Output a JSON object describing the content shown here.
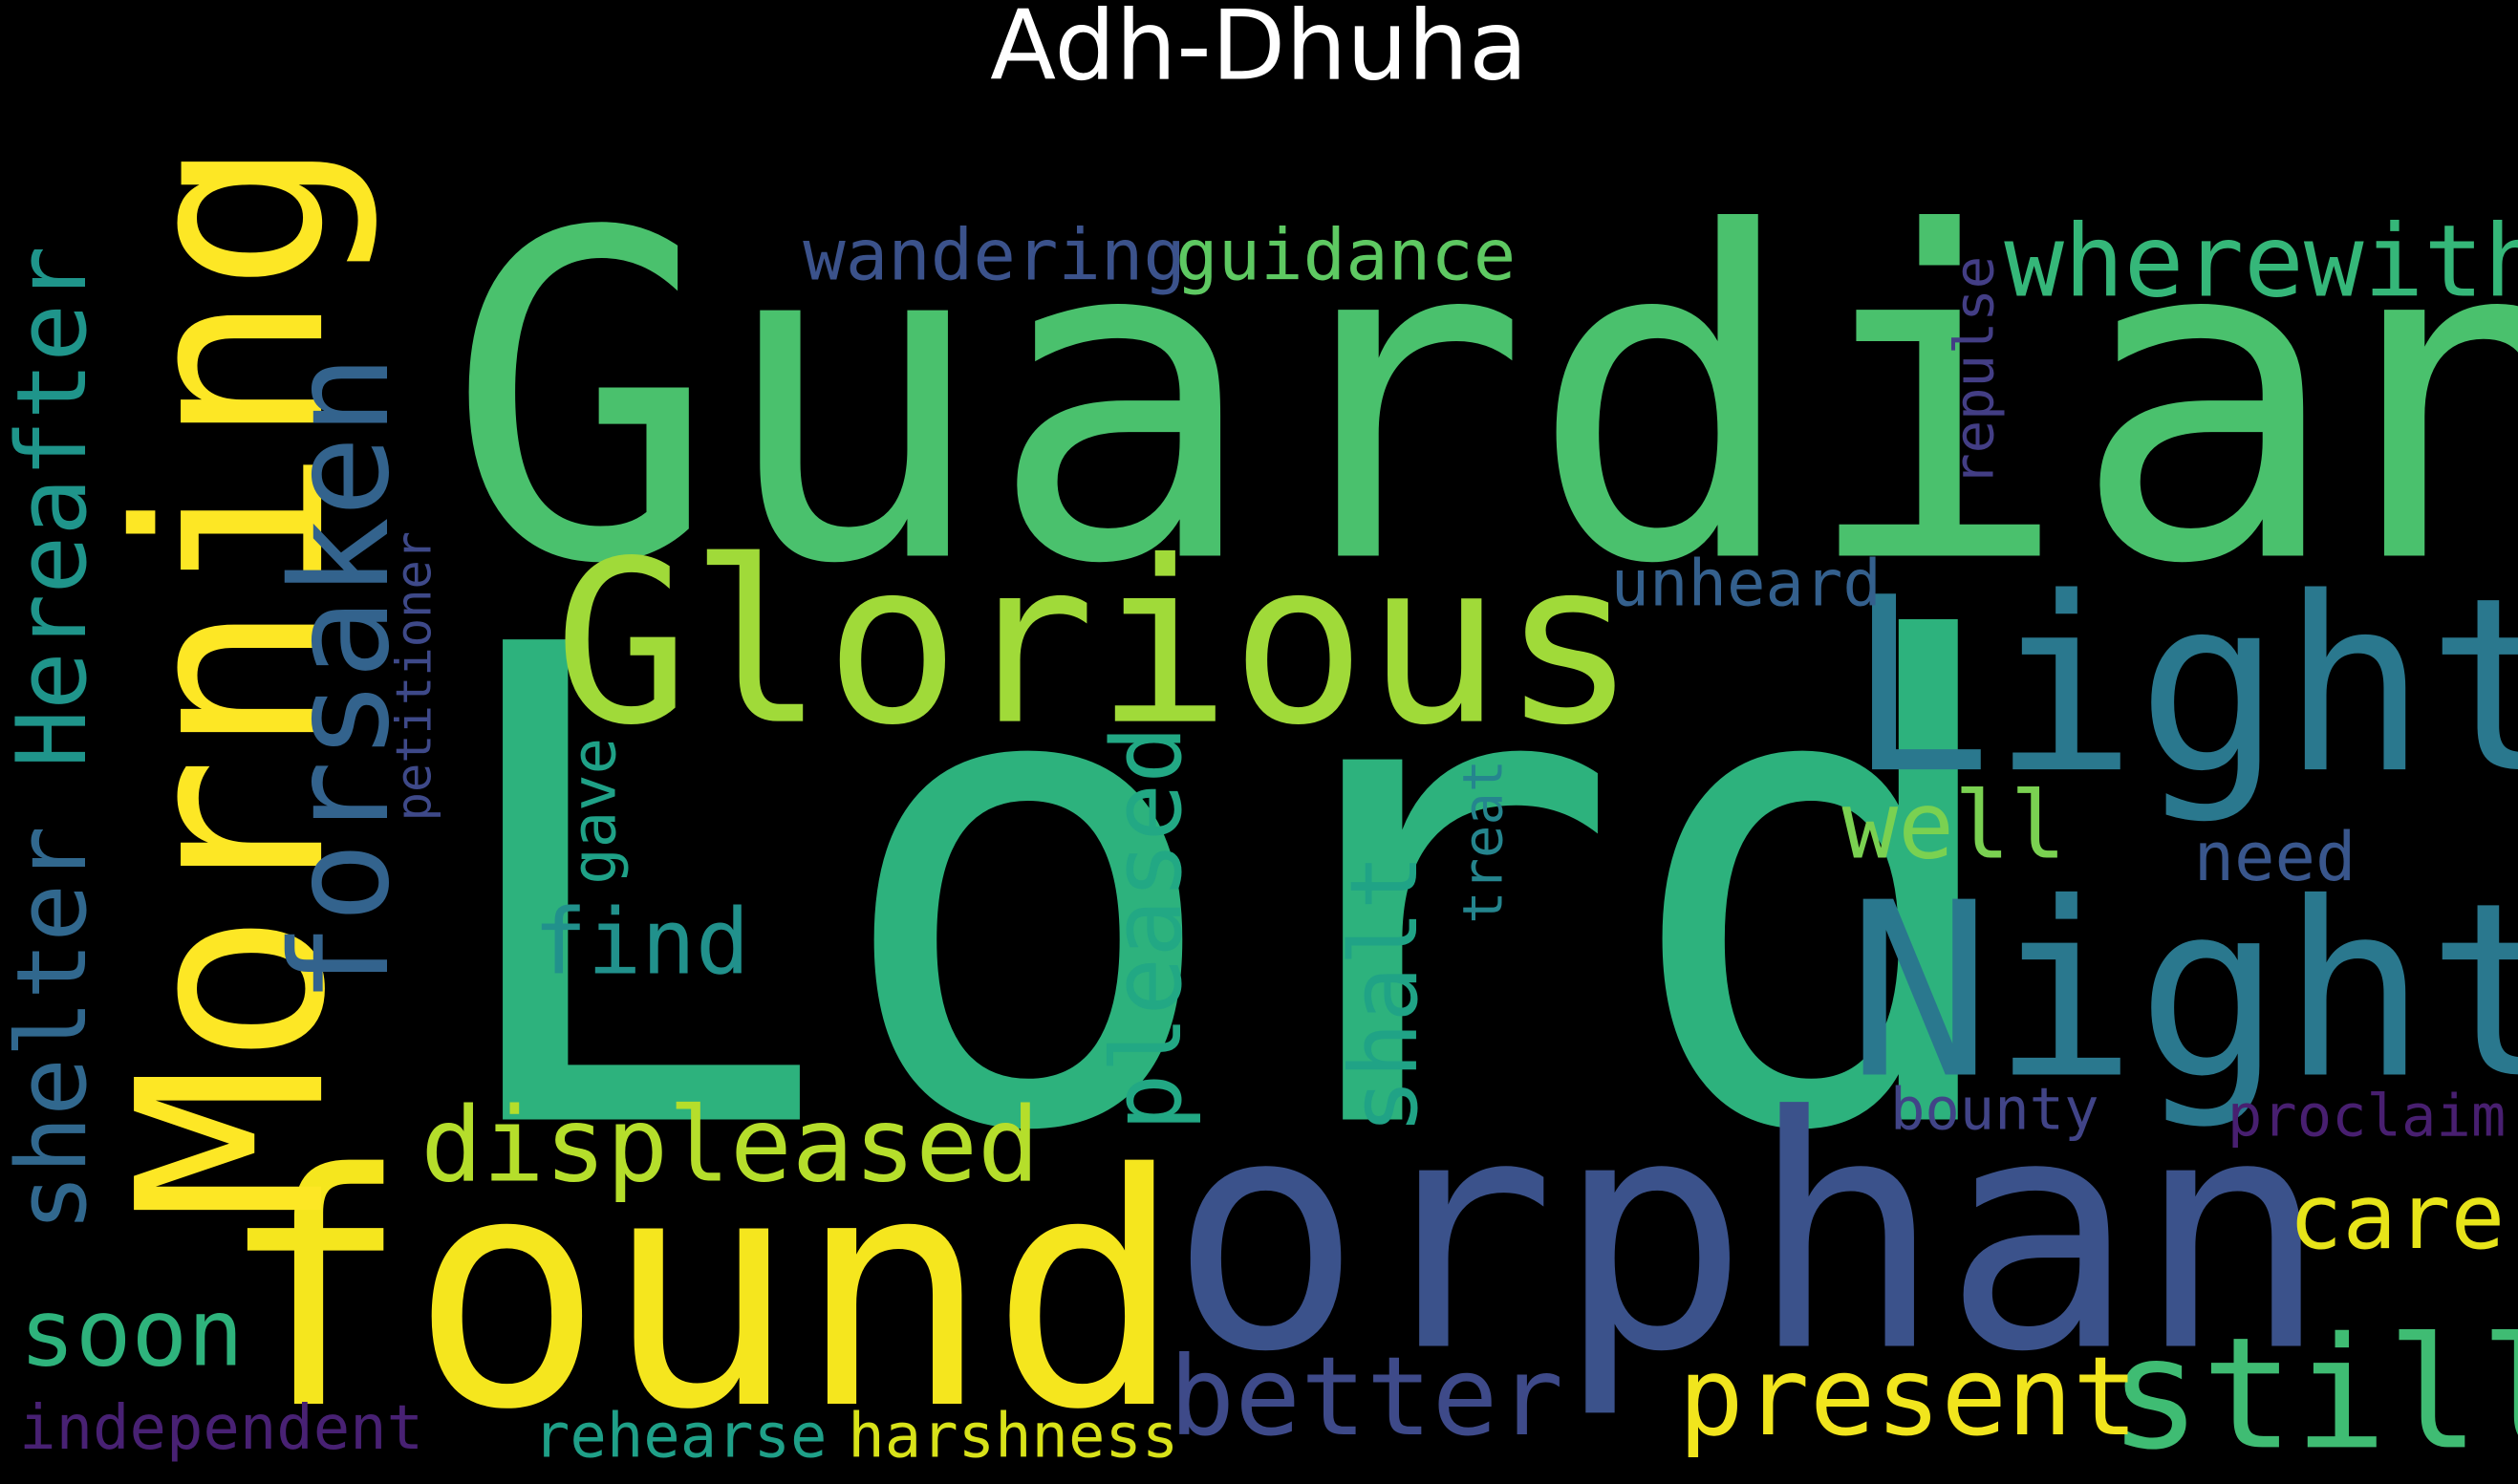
{
  "title": "Adh-Dhuha",
  "palette": {
    "background": "#000000",
    "title": "#ffffff"
  },
  "words": [
    {
      "key": "lord",
      "text": "Lord",
      "color": "#2db27d"
    },
    {
      "key": "guardian",
      "text": "Guardian",
      "color": "#4ac16d"
    },
    {
      "key": "found",
      "text": "found",
      "color": "#f5e61e"
    },
    {
      "key": "orphan",
      "text": "orphan",
      "color": "#3b528b"
    },
    {
      "key": "morning",
      "text": "Morning",
      "color": "#fde725"
    },
    {
      "key": "light",
      "text": "Light",
      "color": "#2a788e"
    },
    {
      "key": "night",
      "text": "Night",
      "color": "#2a788e"
    },
    {
      "key": "glorious",
      "text": "Glorious",
      "color": "#a0da39"
    },
    {
      "key": "forsaken",
      "text": "forsaken",
      "color": "#33638d"
    },
    {
      "key": "still",
      "text": "still",
      "color": "#3fbc73"
    },
    {
      "key": "displeased",
      "text": "displeased",
      "color": "#b5de2b"
    },
    {
      "key": "pleased",
      "text": "pleased",
      "color": "#22a884"
    },
    {
      "key": "present",
      "text": "present",
      "color": "#f1e51d"
    },
    {
      "key": "better",
      "text": "better",
      "color": "#3e4a89"
    },
    {
      "key": "shelter",
      "text": "shelter",
      "color": "#31688e"
    },
    {
      "key": "hereafter",
      "text": "Hereafter",
      "color": "#1f958b"
    },
    {
      "key": "wherewith",
      "text": "wherewith",
      "color": "#35b779"
    },
    {
      "key": "shalt",
      "text": "shalt",
      "color": "#20a386"
    },
    {
      "key": "soon",
      "text": "soon",
      "color": "#2eb37c"
    },
    {
      "key": "find",
      "text": "find",
      "color": "#21918c"
    },
    {
      "key": "well",
      "text": "well",
      "color": "#7ad151"
    },
    {
      "key": "care",
      "text": "care",
      "color": "#e7e419"
    },
    {
      "key": "guidance",
      "text": "guidance",
      "color": "#5ec962"
    },
    {
      "key": "wandering",
      "text": "wandering",
      "color": "#3b528b"
    },
    {
      "key": "unheard",
      "text": "unheard",
      "color": "#34608d"
    },
    {
      "key": "need",
      "text": "need",
      "color": "#39568c"
    },
    {
      "key": "bounty",
      "text": "bounty",
      "color": "#414487"
    },
    {
      "key": "proclaim",
      "text": "proclaim",
      "color": "#481f70"
    },
    {
      "key": "harshness",
      "text": "harshness",
      "color": "#d8e219"
    },
    {
      "key": "rehearse",
      "text": "rehearse",
      "color": "#1fa088"
    },
    {
      "key": "independent",
      "text": "independent",
      "color": "#482173"
    },
    {
      "key": "petitioner",
      "text": "petitioner",
      "color": "#3e4989"
    },
    {
      "key": "gave",
      "text": "gave",
      "color": "#1fa187"
    },
    {
      "key": "treat",
      "text": "treat",
      "color": "#25858e"
    },
    {
      "key": "repulse",
      "text": "repulse",
      "color": "#433e85"
    }
  ]
}
